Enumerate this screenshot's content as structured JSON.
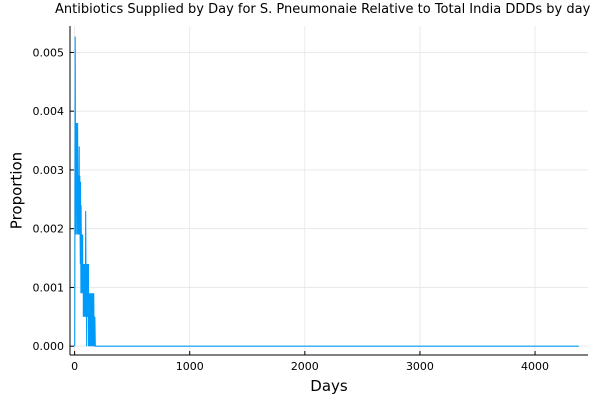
{
  "chart_data": {
    "type": "line",
    "title": "Antibiotics Supplied by Day for S. Pneumonaie Relative to Total India DDDs by day",
    "xlabel": "Days",
    "ylabel": "Proportion",
    "xlim": [
      -40,
      4460
    ],
    "ylim": [
      -0.00015,
      0.00545
    ],
    "xticks": [
      0,
      1000,
      2000,
      3000,
      4000
    ],
    "xtick_labels": [
      "0",
      "1000",
      "2000",
      "3000",
      "4000"
    ],
    "yticks": [
      0.0,
      0.001,
      0.002,
      0.003,
      0.004,
      0.005
    ],
    "ytick_labels": [
      "0.000",
      "0.001",
      "0.002",
      "0.003",
      "0.004",
      "0.005"
    ],
    "grid": true,
    "legend": "none",
    "series": [
      {
        "color": "#009af9",
        "x": [
          1,
          5,
          9,
          10,
          15,
          16,
          20,
          21,
          25,
          26,
          30,
          31,
          35,
          36,
          40,
          41,
          45,
          46,
          50,
          51,
          55,
          56,
          60,
          61,
          65,
          66,
          70,
          71,
          75,
          76,
          80,
          81,
          85,
          86,
          90,
          91,
          95,
          96,
          100,
          101,
          105,
          106,
          110,
          111,
          115,
          116,
          120,
          121,
          125,
          126,
          130,
          131,
          135,
          136,
          140,
          141,
          145,
          146,
          150,
          151,
          155,
          156,
          160,
          161,
          165,
          166,
          170,
          171,
          175,
          176,
          180,
          185,
          190,
          200,
          300,
          1000,
          2000,
          3000,
          4000,
          4380
        ],
        "y": [
          0.0,
          0.00527,
          0.0019,
          0.0038,
          0.0028,
          0.0038,
          0.0019,
          0.0033,
          0.0024,
          0.0038,
          0.0019,
          0.0029,
          0.0024,
          0.0019,
          0.0034,
          0.0019,
          0.0029,
          0.0024,
          0.0014,
          0.0028,
          0.0009,
          0.0024,
          0.0014,
          0.0019,
          0.0009,
          0.0014,
          0.0019,
          0.0009,
          0.0014,
          0.0005,
          0.0014,
          0.0009,
          0.0005,
          0.0014,
          0.0009,
          0.0005,
          0.0014,
          0.0023,
          0.0005,
          0.0014,
          0.0,
          0.0009,
          0.0005,
          0.0014,
          0.0009,
          0.0005,
          0.0014,
          0.0,
          0.0009,
          0.0005,
          0.0,
          0.0009,
          0.0005,
          0.0009,
          0.0,
          0.0005,
          0.0009,
          0.0,
          0.0005,
          0.0009,
          0.0,
          0.0005,
          0.0009,
          0.0,
          0.0005,
          0.0009,
          0.0,
          0.0005,
          0.0,
          0.0005,
          0.0,
          0.0,
          0.0,
          0.0,
          0.0,
          0.0,
          0.0,
          0.0,
          0.0,
          0.0
        ]
      }
    ]
  }
}
